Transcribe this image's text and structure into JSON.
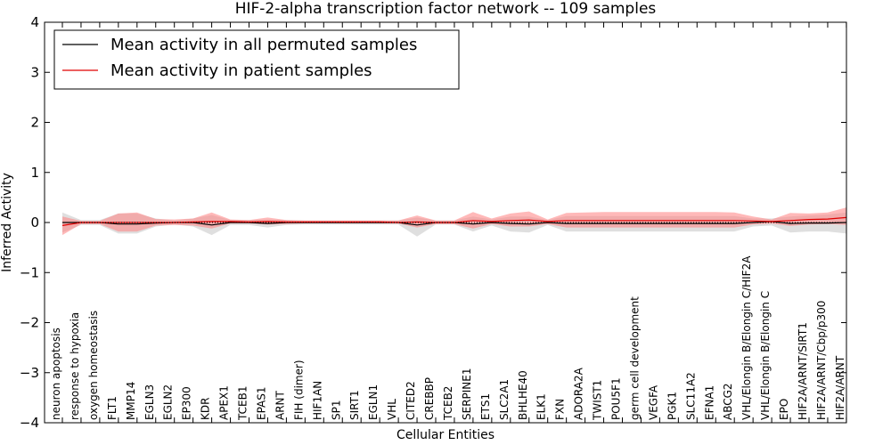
{
  "chart_data": {
    "type": "line",
    "title": "HIF-2-alpha transcription factor network -- 109 samples",
    "xlabel": "Cellular Entities",
    "ylabel": "Inferred Activity",
    "ylim": [
      -4,
      4
    ],
    "yticks": [
      "−4",
      "−3",
      "−2",
      "−1",
      "0",
      "1",
      "2",
      "3",
      "4"
    ],
    "ytick_values": [
      -4,
      -3,
      -2,
      -1,
      0,
      1,
      2,
      3,
      4
    ],
    "grid": false,
    "legend_position": "top-left",
    "categories": [
      "neuron apoptosis",
      "response to hypoxia",
      "oxygen homeostasis",
      "FLT1",
      "MMP14",
      "EGLN3",
      "EGLN2",
      "EP300",
      "KDR",
      "APEX1",
      "TCEB1",
      "EPAS1",
      "ARNT",
      "FIH (dimer)",
      "HIF1AN",
      "SP1",
      "SIRT1",
      "EGLN1",
      "VHL",
      "CITED2",
      "CREBBP",
      "TCEB2",
      "SERPINE1",
      "ETS1",
      "SLC2A1",
      "BHLHE40",
      "ELK1",
      "FXN",
      "ADORA2A",
      "TWIST1",
      "POU5F1",
      "germ cell development",
      "VEGFA",
      "PGK1",
      "SLC11A2",
      "EFNA1",
      "ABCG2",
      "VHL/Elongin B/Elongin C/HIF2A",
      "VHL/Elongin B/Elongin C",
      "EPO",
      "HIF2A/ARNT/SIRT1",
      "HIF2A/ARNT/Cbp/p300",
      "HIF2A/ARNT"
    ],
    "series": [
      {
        "name": "Mean activity in all permuted samples",
        "color": "#000000",
        "band_color": "#b8b8b8",
        "values": [
          0.0,
          0.0,
          0.0,
          -0.03,
          -0.03,
          -0.01,
          0.0,
          0.0,
          -0.05,
          0.0,
          0.0,
          -0.02,
          0.0,
          0.0,
          0.0,
          0.0,
          0.0,
          0.0,
          0.0,
          -0.05,
          0.0,
          0.0,
          -0.03,
          0.0,
          -0.02,
          -0.03,
          0.0,
          -0.02,
          -0.02,
          -0.02,
          -0.02,
          -0.02,
          -0.02,
          -0.02,
          -0.02,
          -0.02,
          -0.02,
          0.0,
          0.02,
          -0.02,
          -0.01,
          -0.01,
          0.0
        ],
        "lower": [
          -0.2,
          -0.05,
          -0.05,
          -0.22,
          -0.22,
          -0.08,
          -0.04,
          -0.08,
          -0.25,
          -0.05,
          -0.05,
          -0.1,
          -0.05,
          -0.04,
          -0.04,
          -0.04,
          -0.04,
          -0.04,
          -0.04,
          -0.28,
          -0.04,
          -0.04,
          -0.18,
          -0.06,
          -0.18,
          -0.2,
          -0.05,
          -0.18,
          -0.18,
          -0.18,
          -0.18,
          -0.18,
          -0.18,
          -0.18,
          -0.18,
          -0.18,
          -0.18,
          -0.08,
          -0.06,
          -0.2,
          -0.18,
          -0.18,
          -0.22
        ],
        "upper": [
          0.2,
          0.05,
          0.05,
          0.18,
          0.18,
          0.08,
          0.04,
          0.08,
          0.15,
          0.05,
          0.05,
          0.06,
          0.05,
          0.04,
          0.04,
          0.04,
          0.04,
          0.04,
          0.04,
          0.1,
          0.04,
          0.04,
          0.12,
          0.06,
          0.12,
          0.12,
          0.05,
          0.13,
          0.13,
          0.13,
          0.13,
          0.13,
          0.13,
          0.13,
          0.13,
          0.13,
          0.13,
          0.08,
          0.08,
          0.12,
          0.14,
          0.16,
          0.2
        ]
      },
      {
        "name": "Mean activity in patient samples",
        "color": "#e00000",
        "band_color": "#ff7f7f",
        "values": [
          -0.06,
          0.0,
          0.0,
          0.0,
          0.0,
          0.0,
          0.0,
          0.01,
          0.02,
          0.02,
          0.01,
          0.02,
          0.01,
          0.01,
          0.01,
          0.01,
          0.01,
          0.01,
          0.0,
          0.01,
          0.0,
          0.0,
          0.04,
          0.02,
          0.04,
          0.05,
          0.02,
          0.04,
          0.04,
          0.04,
          0.04,
          0.04,
          0.04,
          0.04,
          0.04,
          0.04,
          0.04,
          0.03,
          0.02,
          0.04,
          0.06,
          0.07,
          0.1
        ],
        "lower": [
          -0.25,
          -0.03,
          -0.03,
          -0.18,
          -0.18,
          -0.06,
          -0.05,
          -0.06,
          -0.12,
          -0.02,
          -0.02,
          -0.04,
          -0.03,
          -0.02,
          -0.02,
          -0.02,
          -0.02,
          -0.02,
          -0.02,
          -0.1,
          -0.03,
          -0.03,
          -0.12,
          -0.03,
          -0.08,
          -0.08,
          -0.03,
          -0.1,
          -0.1,
          -0.1,
          -0.1,
          -0.1,
          -0.1,
          -0.1,
          -0.1,
          -0.1,
          -0.1,
          -0.04,
          -0.02,
          -0.07,
          -0.04,
          -0.03,
          -0.05
        ],
        "upper": [
          0.12,
          0.03,
          0.03,
          0.18,
          0.2,
          0.07,
          0.06,
          0.08,
          0.2,
          0.06,
          0.05,
          0.1,
          0.05,
          0.04,
          0.04,
          0.04,
          0.04,
          0.04,
          0.04,
          0.14,
          0.04,
          0.04,
          0.21,
          0.08,
          0.18,
          0.22,
          0.06,
          0.19,
          0.2,
          0.21,
          0.21,
          0.21,
          0.21,
          0.21,
          0.21,
          0.21,
          0.2,
          0.12,
          0.06,
          0.19,
          0.18,
          0.2,
          0.3
        ]
      }
    ]
  }
}
